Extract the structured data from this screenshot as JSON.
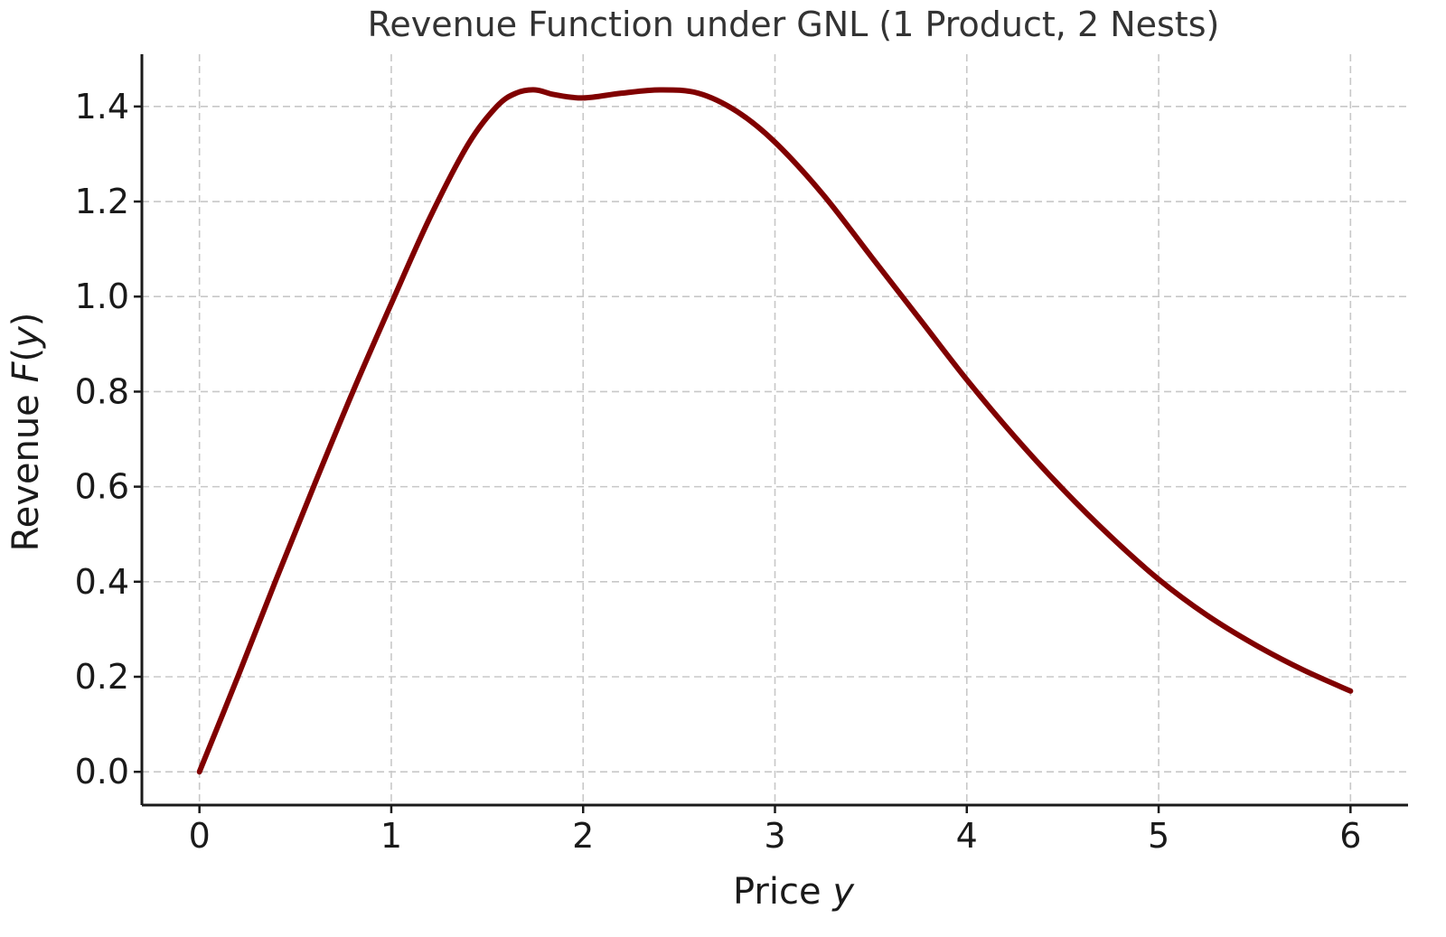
{
  "chart_data": {
    "type": "line",
    "title": "Revenue Function under GNL (1 Product, 2 Nests)",
    "xlabel": "Price",
    "xlabel_var": "y",
    "ylabel": "Revenue",
    "ylabel_func": "F",
    "ylabel_var": "y",
    "xlim": [
      -0.3,
      6.3
    ],
    "ylim": [
      -0.07,
      1.51
    ],
    "x_ticks": [
      0,
      1,
      2,
      3,
      4,
      5,
      6
    ],
    "x_tick_labels": [
      "0",
      "1",
      "2",
      "3",
      "4",
      "5",
      "6"
    ],
    "y_ticks": [
      0.0,
      0.2,
      0.4,
      0.6,
      0.8,
      1.0,
      1.2,
      1.4
    ],
    "y_tick_labels": [
      "0.0",
      "0.2",
      "0.4",
      "0.6",
      "0.8",
      "1.0",
      "1.2",
      "1.4"
    ],
    "grid": true,
    "series": [
      {
        "color": "#800000",
        "x": [
          0,
          0.2,
          0.4,
          0.6,
          0.8,
          1.0,
          1.2,
          1.4,
          1.55,
          1.65,
          1.75,
          1.85,
          2.0,
          2.2,
          2.4,
          2.6,
          2.8,
          3.0,
          3.25,
          3.5,
          3.75,
          4.0,
          4.25,
          4.5,
          4.75,
          5.0,
          5.25,
          5.5,
          5.75,
          6.0
        ],
        "y": [
          0.0,
          0.2,
          0.405,
          0.605,
          0.8,
          0.985,
          1.165,
          1.32,
          1.4,
          1.428,
          1.435,
          1.425,
          1.418,
          1.428,
          1.435,
          1.428,
          1.39,
          1.325,
          1.215,
          1.085,
          0.955,
          0.825,
          0.705,
          0.595,
          0.495,
          0.405,
          0.33,
          0.268,
          0.215,
          0.17
        ]
      }
    ]
  }
}
